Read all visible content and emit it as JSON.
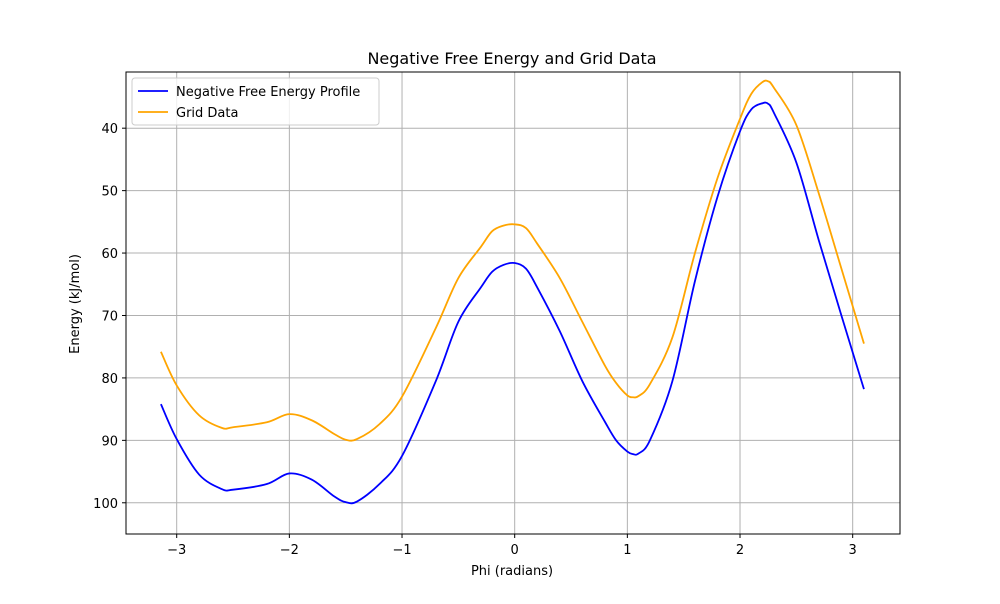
{
  "chart_data": {
    "type": "line",
    "title": "Negative Free Energy and Grid Data",
    "xlabel": "Phi (radians)",
    "ylabel": "Energy (kJ/mol)",
    "xlim": [
      -3.45,
      3.42
    ],
    "ylim": [
      105,
      31
    ],
    "y_inverted": true,
    "grid": true,
    "legend_position": "top-left",
    "x_ticks": [
      -3,
      -2,
      -1,
      0,
      1,
      2,
      3
    ],
    "x_tick_labels": [
      "−3",
      "−2",
      "−1",
      "0",
      "1",
      "2",
      "3"
    ],
    "y_ticks": [
      40,
      50,
      60,
      70,
      80,
      90,
      100
    ],
    "y_tick_labels": [
      "40",
      "50",
      "60",
      "70",
      "80",
      "90",
      "100"
    ],
    "series": [
      {
        "name": "Negative Free Energy Profile",
        "color": "#0000ff",
        "x": [
          -3.14,
          -3.0,
          -2.8,
          -2.6,
          -2.5,
          -2.2,
          -2.0,
          -1.8,
          -1.6,
          -1.5,
          -1.4,
          -1.2,
          -1.0,
          -0.7,
          -0.5,
          -0.3,
          -0.2,
          -0.1,
          0.0,
          0.1,
          0.2,
          0.4,
          0.6,
          0.8,
          0.9,
          1.0,
          1.05,
          1.1,
          1.2,
          1.4,
          1.6,
          1.8,
          2.0,
          2.1,
          2.2,
          2.25,
          2.3,
          2.5,
          2.7,
          2.9,
          3.1
        ],
        "y": [
          84.2,
          89.8,
          95.5,
          97.8,
          97.9,
          97.0,
          95.3,
          96.3,
          99.0,
          99.9,
          99.8,
          97.0,
          92.5,
          80.5,
          71.0,
          65.5,
          63.0,
          61.9,
          61.6,
          62.5,
          65.5,
          72.5,
          80.5,
          87.0,
          90.0,
          91.8,
          92.2,
          92.1,
          90.0,
          80.5,
          64.5,
          51.0,
          40.5,
          37.0,
          36.0,
          36.1,
          37.5,
          45.5,
          58.0,
          70.0,
          81.8
        ]
      },
      {
        "name": "Grid Data",
        "color": "#ffa500",
        "x": [
          -3.14,
          -3.0,
          -2.8,
          -2.6,
          -2.5,
          -2.2,
          -2.0,
          -1.8,
          -1.6,
          -1.5,
          -1.4,
          -1.2,
          -1.0,
          -0.7,
          -0.5,
          -0.3,
          -0.2,
          -0.1,
          0.0,
          0.1,
          0.2,
          0.4,
          0.6,
          0.8,
          0.9,
          1.0,
          1.05,
          1.1,
          1.2,
          1.4,
          1.6,
          1.8,
          2.0,
          2.1,
          2.2,
          2.25,
          2.3,
          2.5,
          2.7,
          2.9,
          3.1
        ],
        "y": [
          75.8,
          81.2,
          86.0,
          88.0,
          87.9,
          87.1,
          85.8,
          86.8,
          89.0,
          89.9,
          89.8,
          87.4,
          83.0,
          72.0,
          64.0,
          59.0,
          56.5,
          55.6,
          55.4,
          56.0,
          58.5,
          64.0,
          71.0,
          78.0,
          80.8,
          82.8,
          83.1,
          82.9,
          81.0,
          73.5,
          60.0,
          48.0,
          38.5,
          34.5,
          32.6,
          32.5,
          33.5,
          39.5,
          50.5,
          62.5,
          74.5
        ]
      }
    ]
  }
}
